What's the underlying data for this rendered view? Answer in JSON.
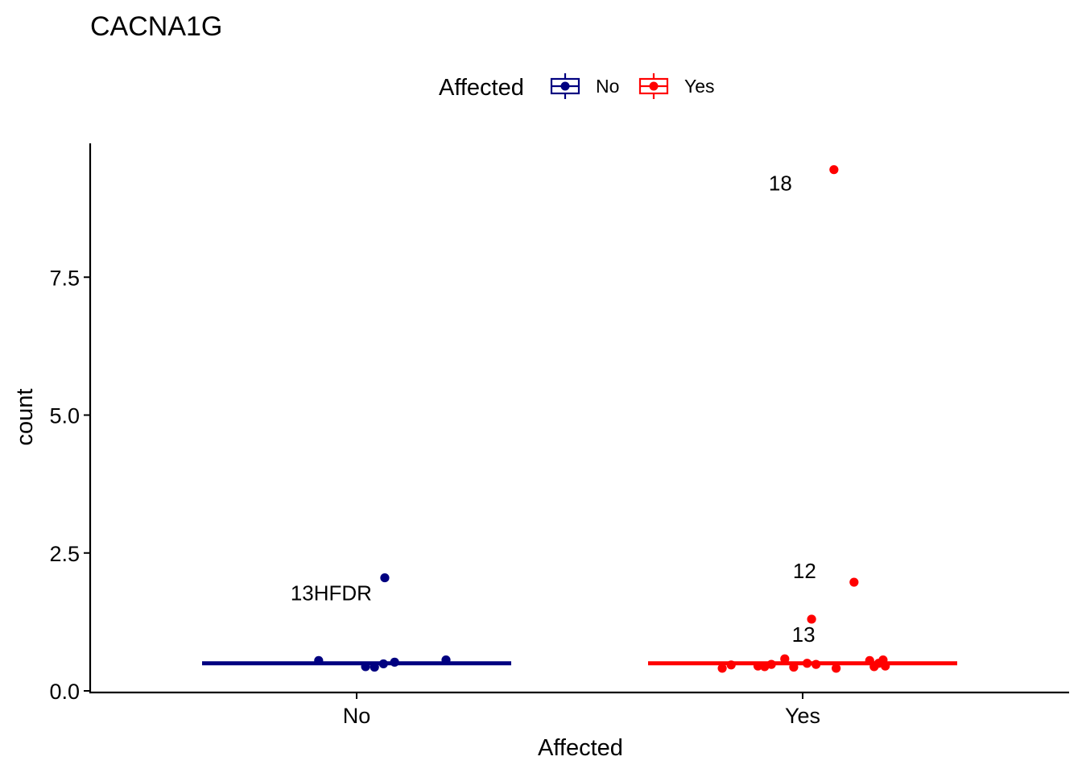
{
  "chart_data": {
    "type": "scatter",
    "title": "CACNA1G",
    "xlabel": "Affected",
    "ylabel": "count",
    "categories": [
      "No",
      "Yes"
    ],
    "ylim": [
      0,
      9.9
    ],
    "yticks": [
      0.0,
      2.5,
      5.0,
      7.5
    ],
    "ytick_labels": [
      "0.0",
      "2.5",
      "5.0",
      "7.5"
    ],
    "legend": {
      "title": "Affected",
      "position": "top",
      "entries": [
        "No",
        "Yes"
      ]
    },
    "grid": false,
    "series": [
      {
        "name": "No",
        "color": "#000080",
        "median": 0.5,
        "points": [
          {
            "x": -0.085,
            "y": 0.55
          },
          {
            "x": 0.02,
            "y": 0.44
          },
          {
            "x": 0.04,
            "y": 0.43
          },
          {
            "x": 0.06,
            "y": 0.49
          },
          {
            "x": 0.085,
            "y": 0.52
          },
          {
            "x": 0.2,
            "y": 0.56
          },
          {
            "x": 0.063,
            "y": 2.05,
            "label": "13HFDR"
          }
        ]
      },
      {
        "name": "Yes",
        "color": "#ff0000",
        "median": 0.5,
        "points": [
          {
            "x": -0.18,
            "y": 0.41
          },
          {
            "x": -0.16,
            "y": 0.47
          },
          {
            "x": -0.1,
            "y": 0.45
          },
          {
            "x": -0.085,
            "y": 0.44
          },
          {
            "x": -0.07,
            "y": 0.48
          },
          {
            "x": -0.04,
            "y": 0.58
          },
          {
            "x": -0.02,
            "y": 0.43
          },
          {
            "x": 0.01,
            "y": 0.5
          },
          {
            "x": 0.03,
            "y": 0.48
          },
          {
            "x": 0.075,
            "y": 0.41
          },
          {
            "x": 0.15,
            "y": 0.55
          },
          {
            "x": 0.16,
            "y": 0.44
          },
          {
            "x": 0.17,
            "y": 0.5
          },
          {
            "x": 0.18,
            "y": 0.56
          },
          {
            "x": 0.185,
            "y": 0.45
          },
          {
            "x": 0.02,
            "y": 1.3,
            "label": "13"
          },
          {
            "x": 0.115,
            "y": 1.97,
            "label": "12"
          },
          {
            "x": 0.07,
            "y": 9.45,
            "label": "18"
          }
        ]
      }
    ]
  }
}
